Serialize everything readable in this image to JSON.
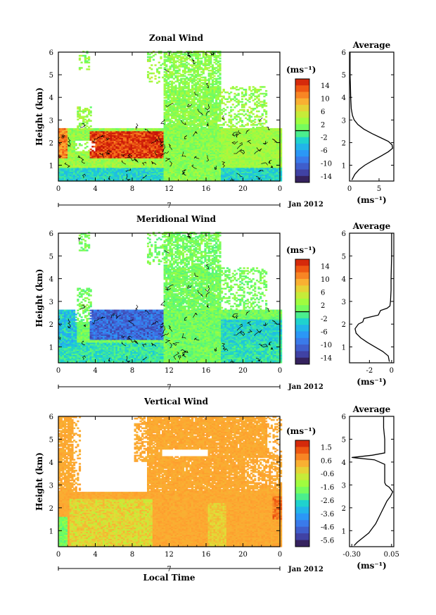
{
  "chart_data": [
    {
      "type": "heatmap",
      "title": "Zonal Wind",
      "ylabel": "Height (km)",
      "xlabel": "",
      "x_ticks": [
        "0",
        "4",
        "8",
        "12",
        "16",
        "20",
        "0"
      ],
      "y_ticks": [
        "1",
        "2",
        "3",
        "4",
        "5",
        "6"
      ],
      "xlim": [
        0,
        24
      ],
      "ylim": [
        0.3,
        6
      ],
      "date_marker": "7",
      "date_label": "Jan 2012",
      "colorbar": {
        "unit": "(ms⁻¹)",
        "ticks": [
          "14",
          "10",
          "6",
          "2",
          "-2",
          "-6",
          "-10",
          "-14"
        ],
        "range": [
          -16,
          16
        ],
        "contour_zero": true
      },
      "profile": {
        "title": "Average",
        "xlabel": "(ms⁻¹)",
        "x_ticks": [
          "0",
          "5"
        ],
        "xlim": [
          0,
          7.5
        ],
        "y": [
          0.35,
          0.6,
          0.8,
          1.0,
          1.2,
          1.4,
          1.6,
          1.75,
          1.9,
          2.05,
          2.2,
          2.4,
          2.6,
          2.8,
          3.0,
          3.2,
          3.5,
          4.0,
          4.5,
          5.0,
          5.5,
          6.0
        ],
        "values": [
          0.4,
          0.9,
          1.6,
          2.6,
          3.9,
          5.3,
          6.6,
          7.3,
          7.2,
          6.6,
          5.4,
          3.8,
          2.4,
          1.4,
          0.8,
          0.5,
          0.3,
          0.2,
          0.15,
          0.1,
          0.1,
          0.1
        ]
      }
    },
    {
      "type": "heatmap",
      "title": "Meridional Wind",
      "ylabel": "Height (km)",
      "xlabel": "",
      "x_ticks": [
        "0",
        "4",
        "8",
        "12",
        "16",
        "20",
        "0"
      ],
      "y_ticks": [
        "1",
        "2",
        "3",
        "4",
        "5",
        "6"
      ],
      "xlim": [
        0,
        24
      ],
      "ylim": [
        0.3,
        6
      ],
      "date_marker": "7",
      "date_label": "Jan 2012",
      "colorbar": {
        "unit": "(ms⁻¹)",
        "ticks": [
          "14",
          "10",
          "6",
          "2",
          "-2",
          "-6",
          "-10",
          "-14"
        ],
        "range": [
          -16,
          16
        ],
        "contour_zero": true
      },
      "profile": {
        "title": "Average",
        "xlabel": "(ms⁻¹)",
        "x_ticks": [
          "-2",
          "0"
        ],
        "xlim": [
          -3.8,
          0.2
        ],
        "y": [
          0.35,
          0.6,
          0.8,
          1.0,
          1.2,
          1.4,
          1.6,
          1.8,
          2.0,
          2.1,
          2.25,
          2.4,
          2.6,
          2.7,
          2.8,
          3.0,
          3.5,
          4.0,
          5.0,
          6.0
        ],
        "values": [
          -0.2,
          -0.3,
          -0.8,
          -1.5,
          -2.2,
          -2.8,
          -3.2,
          -3.3,
          -3.0,
          -2.6,
          -2.5,
          -1.2,
          -1.0,
          -0.4,
          -0.15,
          -0.1,
          -0.05,
          -0.05,
          0.0,
          0.0
        ]
      }
    },
    {
      "type": "heatmap",
      "title": "Vertical Wind",
      "ylabel": "Height (km)",
      "xlabel": "Local Time",
      "x_ticks": [
        "0",
        "4",
        "8",
        "12",
        "16",
        "20",
        "0"
      ],
      "y_ticks": [
        "1",
        "2",
        "3",
        "4",
        "5",
        "6"
      ],
      "xlim": [
        0,
        24
      ],
      "ylim": [
        0.3,
        6
      ],
      "date_marker": "7",
      "date_label": "Jan 2012",
      "colorbar": {
        "unit": "(ms⁻¹)",
        "ticks": [
          "1.5",
          "0.6",
          "-0.6",
          "-1.6",
          "-2.6",
          "-3.6",
          "-4.6",
          "-5.6"
        ],
        "range": [
          -6.2,
          2.0
        ],
        "contour_zero": false
      },
      "profile": {
        "title": "Average",
        "xlabel": "(ms⁻¹)",
        "x_ticks": [
          "-0.30",
          "0.05"
        ],
        "xlim": [
          -0.32,
          0.07
        ],
        "y": [
          0.35,
          0.5,
          0.7,
          0.9,
          1.1,
          1.3,
          1.5,
          1.7,
          1.9,
          2.1,
          2.3,
          2.5,
          2.7,
          2.9,
          3.0,
          3.1,
          3.5,
          3.9,
          4.1,
          4.2,
          4.3,
          4.4,
          4.6,
          5.0,
          5.5,
          6.0
        ],
        "values": [
          -0.28,
          -0.25,
          -0.2,
          -0.15,
          -0.12,
          -0.09,
          -0.07,
          -0.05,
          -0.03,
          -0.01,
          0.01,
          0.04,
          0.06,
          0.03,
          0.0,
          -0.01,
          -0.01,
          -0.01,
          -0.1,
          -0.3,
          -0.12,
          -0.01,
          -0.01,
          -0.01,
          -0.02,
          -0.02
        ]
      }
    }
  ]
}
